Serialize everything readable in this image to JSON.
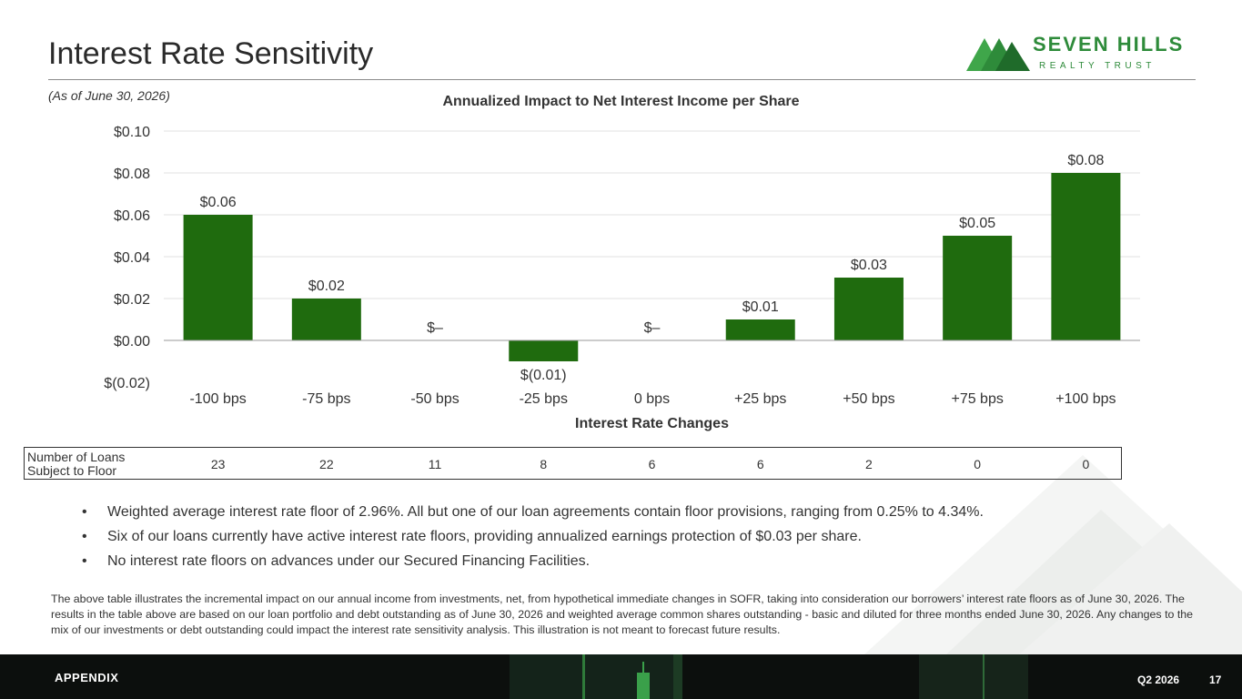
{
  "header": {
    "title": "Interest Rate Sensitivity"
  },
  "logo": {
    "name": "SEVEN HILLS",
    "sub": "REALTY TRUST"
  },
  "as_of": "(As of June 30, 2026)",
  "colors": {
    "bar": "#1f6b0e",
    "brand": "#2e8b3a",
    "footer": "#0c0f0d"
  },
  "chart_data": {
    "type": "bar",
    "title": "Annualized Impact to Net Interest Income per Share",
    "xlabel": "Interest Rate Changes",
    "ylabel": "",
    "categories": [
      "-100 bps",
      "-75 bps",
      "-50 bps",
      "-25 bps",
      "0 bps",
      "+25 bps",
      "+50 bps",
      "+75 bps",
      "+100 bps"
    ],
    "values": [
      0.06,
      0.02,
      0,
      -0.01,
      0,
      0.01,
      0.03,
      0.05,
      0.08
    ],
    "data_labels": [
      "$0.06",
      "$0.02",
      "$–",
      "$(0.01)",
      "$–",
      "$0.01",
      "$0.03",
      "$0.05",
      "$0.08"
    ],
    "yticks": [
      0.1,
      0.08,
      0.06,
      0.04,
      0.02,
      0.0,
      -0.02
    ],
    "ytick_labels": [
      "$0.10",
      "$0.08",
      "$0.06",
      "$0.04",
      "$0.02",
      "$0.00",
      "$(0.02)"
    ],
    "ylim": [
      -0.02,
      0.1
    ],
    "grid": true,
    "legend": "none"
  },
  "floor_table": {
    "label": "Number of Loans Subject to Floor",
    "values": [
      "23",
      "22",
      "11",
      "8",
      "6",
      "6",
      "2",
      "0",
      "0"
    ]
  },
  "bullets": [
    "Weighted average interest rate floor of 2.96%. All but one of our loan agreements contain floor provisions, ranging from 0.25% to 4.34%.",
    "Six of our loans currently have active interest rate floors, providing annualized earnings protection of $0.03 per share.",
    "No interest rate floors on advances under our Secured Financing Facilities."
  ],
  "disclaimer": "The above table illustrates the incremental impact on our annual income from investments, net, from hypothetical immediate changes in SOFR, taking into consideration our borrowers’ interest rate floors as of June 30, 2026. The results in the table above are based on our loan portfolio and debt outstanding as of June 30, 2026 and weighted average common shares outstanding - basic and diluted for three months ended June 30, 2026. Any changes to the mix of our investments or debt outstanding could impact the interest rate sensitivity analysis. This illustration is not meant to forecast future results.",
  "footer": {
    "section": "APPENDIX",
    "period": "Q2 2026",
    "page": "17"
  }
}
